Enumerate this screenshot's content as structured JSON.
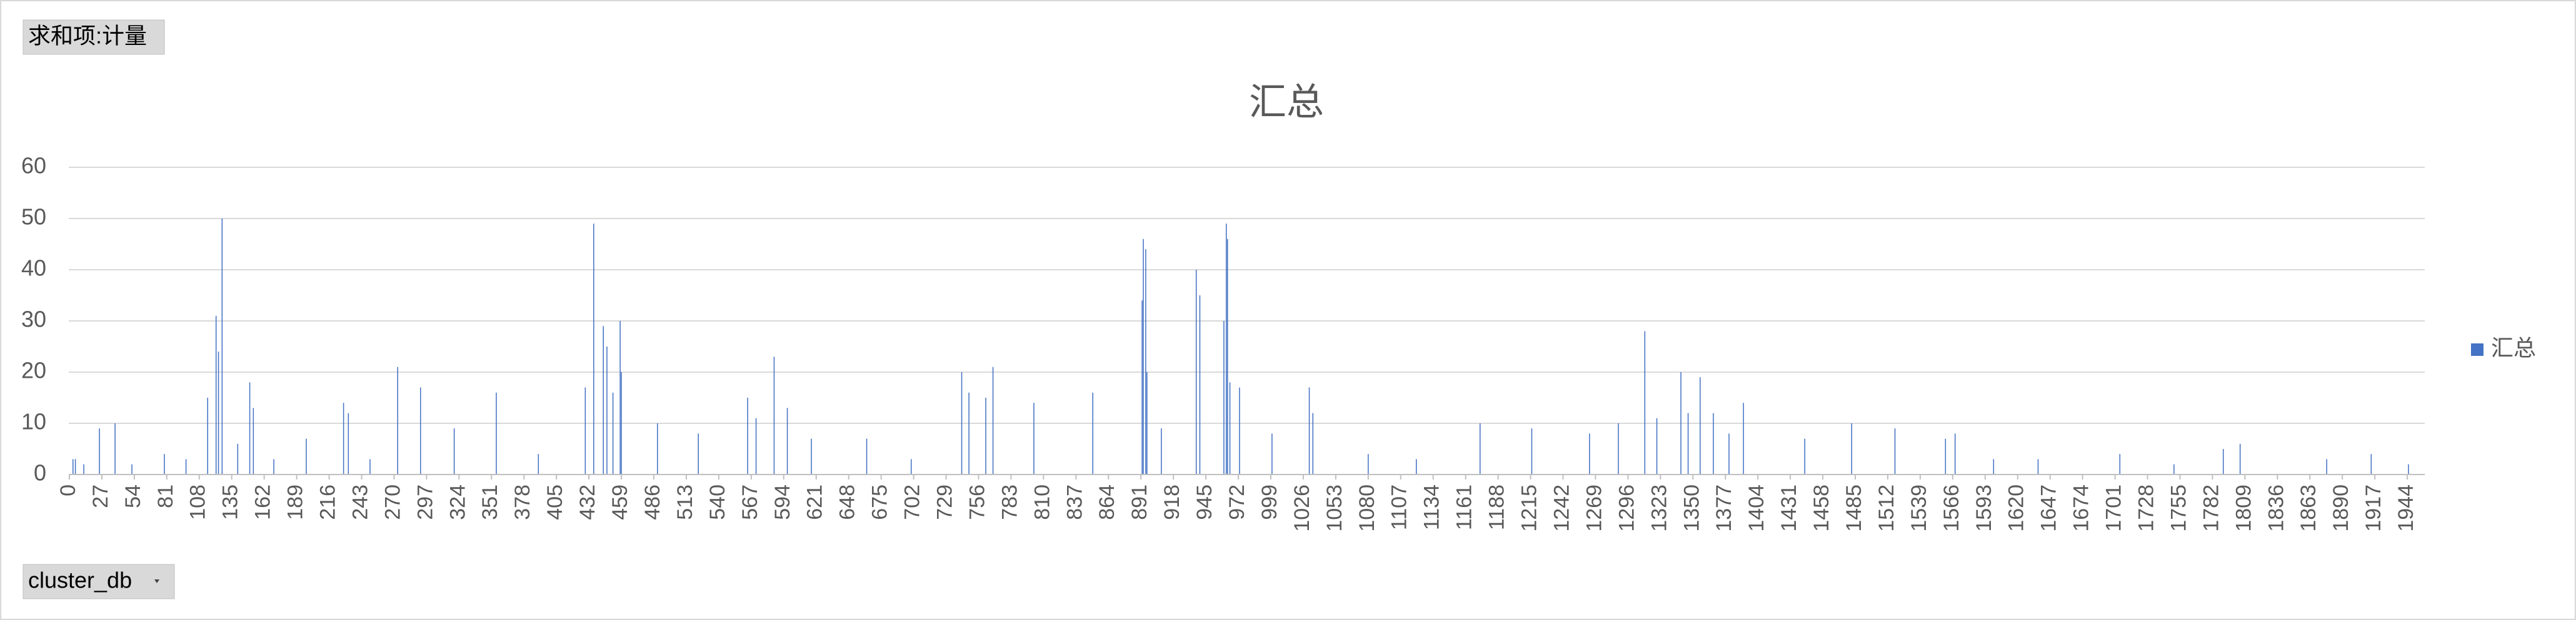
{
  "field_buttons": {
    "value_field": "求和项:计量",
    "axis_field": "cluster_db"
  },
  "chart_data": {
    "type": "bar",
    "title": "汇总",
    "x": [
      3,
      5,
      12,
      25,
      38,
      52,
      79,
      97,
      115,
      122,
      124,
      127,
      140,
      150,
      153,
      170,
      197,
      228,
      232,
      250,
      273,
      292,
      320,
      355,
      390,
      429,
      436,
      444,
      447,
      452,
      458,
      459,
      489,
      523,
      564,
      571,
      586,
      597,
      617,
      663,
      700,
      742,
      748,
      762,
      768,
      802,
      851,
      892,
      893,
      895,
      896,
      908,
      937,
      940,
      960,
      962,
      963,
      965,
      973,
      1000,
      1031,
      1034,
      1080,
      1120,
      1173,
      1216,
      1264,
      1288,
      1310,
      1320,
      1340,
      1346,
      1356,
      1367,
      1380,
      1392,
      1443,
      1482,
      1518,
      1560,
      1568,
      1600,
      1637,
      1705,
      1750,
      1791,
      1805,
      1877,
      1914,
      1945
    ],
    "series": [
      {
        "name": "汇总",
        "color": "#4472c4",
        "values": [
          3,
          3,
          2,
          9,
          10,
          2,
          4,
          3,
          15,
          31,
          24,
          50,
          6,
          18,
          13,
          3,
          7,
          14,
          12,
          3,
          21,
          17,
          9,
          16,
          4,
          17,
          49,
          29,
          25,
          16,
          30,
          20,
          10,
          8,
          15,
          11,
          23,
          13,
          7,
          7,
          3,
          20,
          16,
          15,
          21,
          14,
          16,
          34,
          46,
          44,
          20,
          9,
          40,
          35,
          30,
          49,
          46,
          18,
          17,
          8,
          17,
          12,
          4,
          3,
          10,
          9,
          8,
          10,
          28,
          11,
          20,
          12,
          19,
          12,
          8,
          14,
          7,
          10,
          9,
          7,
          8,
          3,
          3,
          4,
          2,
          5,
          6,
          3,
          4,
          2
        ]
      }
    ],
    "xlim": [
      0,
      1959
    ],
    "xticks": [
      0,
      27,
      54,
      81,
      108,
      135,
      162,
      189,
      216,
      243,
      270,
      297,
      324,
      351,
      378,
      405,
      432,
      459,
      486,
      513,
      540,
      567,
      594,
      621,
      648,
      675,
      702,
      729,
      756,
      783,
      810,
      837,
      864,
      891,
      918,
      945,
      972,
      999,
      1026,
      1053,
      1080,
      1107,
      1134,
      1161,
      1188,
      1215,
      1242,
      1269,
      1296,
      1323,
      1350,
      1377,
      1404,
      1431,
      1458,
      1485,
      1512,
      1539,
      1566,
      1593,
      1620,
      1647,
      1674,
      1701,
      1728,
      1755,
      1782,
      1809,
      1836,
      1863,
      1890,
      1917,
      1944
    ],
    "ylim": [
      0,
      60
    ],
    "yticks": [
      0,
      10,
      20,
      30,
      40,
      50,
      60
    ],
    "grid": true,
    "legend": "right"
  }
}
